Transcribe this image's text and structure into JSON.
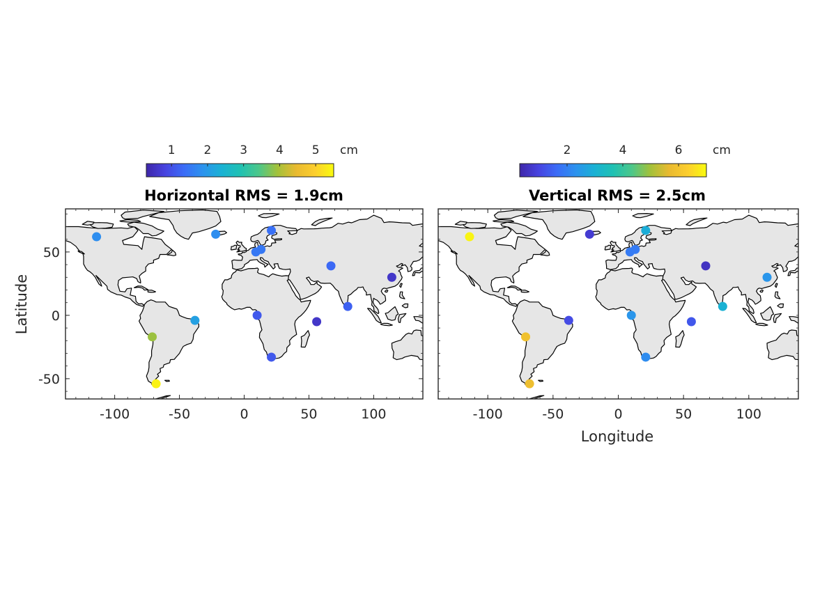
{
  "colormap": [
    "#3e26a8",
    "#4743e0",
    "#3b6cf7",
    "#2c92ee",
    "#1ab1d4",
    "#1fc1b3",
    "#4cc78a",
    "#a3c13a",
    "#e9ba30",
    "#fcce2e",
    "#f9fb0e"
  ],
  "land_color": "#e6e6e6",
  "coast_color": "#000000",
  "chart_data": [
    {
      "type": "scatter",
      "title": "Horizontal RMS = 1.9cm",
      "xlabel": "",
      "ylabel": "Latitude",
      "xlim": [
        -138,
        138
      ],
      "ylim": [
        -66,
        84
      ],
      "xticks": [
        "-100",
        "-50",
        "0",
        "50",
        "100"
      ],
      "yticks": [
        "-50",
        "0",
        "50"
      ],
      "colorbar": {
        "range": [
          0.3,
          5.5
        ],
        "ticks": [
          "1",
          "2",
          "3",
          "4",
          "5"
        ],
        "unit": "cm",
        "placement": "top"
      },
      "points": [
        {
          "lon": -114,
          "lat": 62,
          "value": 1.8
        },
        {
          "lon": -22,
          "lat": 64,
          "value": 1.8
        },
        {
          "lon": 21,
          "lat": 67,
          "value": 1.4
        },
        {
          "lon": 9,
          "lat": 50,
          "value": 1.5
        },
        {
          "lon": 13,
          "lat": 52,
          "value": 1.5
        },
        {
          "lon": 67,
          "lat": 39,
          "value": 1.3
        },
        {
          "lon": 114,
          "lat": 30,
          "value": 0.6
        },
        {
          "lon": 80,
          "lat": 7,
          "value": 1.2
        },
        {
          "lon": 10,
          "lat": 0,
          "value": 1.1
        },
        {
          "lon": 56,
          "lat": -5,
          "value": 0.6
        },
        {
          "lon": -38,
          "lat": -4,
          "value": 2.1
        },
        {
          "lon": 21,
          "lat": -33,
          "value": 1.1
        },
        {
          "lon": -71,
          "lat": -17,
          "value": 3.9
        },
        {
          "lon": -68,
          "lat": -54,
          "value": 5.4
        }
      ]
    },
    {
      "type": "scatter",
      "title": "Vertical RMS = 2.5cm",
      "xlabel": "Longitude",
      "ylabel": "",
      "xlim": [
        -138,
        138
      ],
      "ylim": [
        -66,
        84
      ],
      "xticks": [
        "-100",
        "-50",
        "0",
        "50",
        "100"
      ],
      "yticks": [],
      "colorbar": {
        "range": [
          0.3,
          7.0
        ],
        "ticks": [
          "2",
          "4",
          "6"
        ],
        "unit": "cm",
        "placement": "top"
      },
      "points": [
        {
          "lon": -114,
          "lat": 62,
          "value": 6.9
        },
        {
          "lon": -22,
          "lat": 64,
          "value": 0.8
        },
        {
          "lon": 21,
          "lat": 67,
          "value": 2.9
        },
        {
          "lon": 9,
          "lat": 50,
          "value": 1.9
        },
        {
          "lon": 13,
          "lat": 52,
          "value": 1.9
        },
        {
          "lon": 67,
          "lat": 39,
          "value": 0.6
        },
        {
          "lon": 114,
          "lat": 30,
          "value": 2.4
        },
        {
          "lon": 80,
          "lat": 7,
          "value": 3.0
        },
        {
          "lon": 10,
          "lat": 0,
          "value": 2.4
        },
        {
          "lon": 56,
          "lat": -5,
          "value": 1.3
        },
        {
          "lon": -38,
          "lat": -4,
          "value": 1.1
        },
        {
          "lon": 21,
          "lat": -33,
          "value": 2.2
        },
        {
          "lon": -71,
          "lat": -17,
          "value": 5.9
        },
        {
          "lon": -68,
          "lat": -54,
          "value": 5.8
        }
      ]
    }
  ]
}
